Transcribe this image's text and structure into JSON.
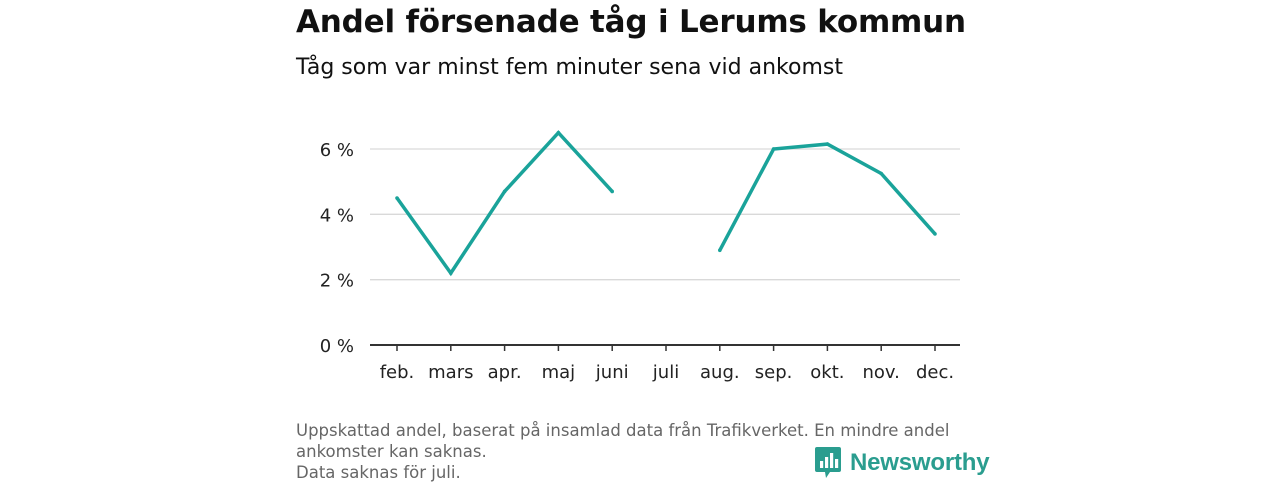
{
  "header": {
    "title": "Andel försenade tåg i Lerums kommun",
    "subtitle": "Tåg som var minst fem minuter sena vid ankomst"
  },
  "footer": {
    "note_line1": "Uppskattad andel, baserat på insamlad data från Trafikverket. En mindre andel",
    "note_line2": "ankomster kan saknas.",
    "note_line3": "Data saknas för juli.",
    "brand_name": "Newsworthy"
  },
  "colors": {
    "line": "#1aa39a",
    "grid": "#d9d9d9",
    "axis": "#333333",
    "brand": "#2a9d8f"
  },
  "chart_data": {
    "type": "line",
    "title": "Andel försenade tåg i Lerums kommun",
    "subtitle": "Tåg som var minst fem minuter sena vid ankomst",
    "xlabel": "",
    "ylabel": "",
    "categories": [
      "feb.",
      "mars",
      "apr.",
      "maj",
      "juni",
      "juli",
      "aug.",
      "sep.",
      "okt.",
      "nov.",
      "dec."
    ],
    "series": [
      {
        "name": "Andel försenade tåg",
        "values": [
          4.5,
          2.2,
          4.7,
          6.5,
          4.7,
          null,
          2.9,
          6.0,
          6.15,
          5.25,
          3.4
        ]
      }
    ],
    "ylim": [
      0,
      7
    ],
    "yticks": [
      0,
      2,
      4,
      6
    ],
    "ytick_labels": [
      "0 %",
      "2 %",
      "4 %",
      "6 %"
    ],
    "grid": true,
    "legend": "none"
  }
}
